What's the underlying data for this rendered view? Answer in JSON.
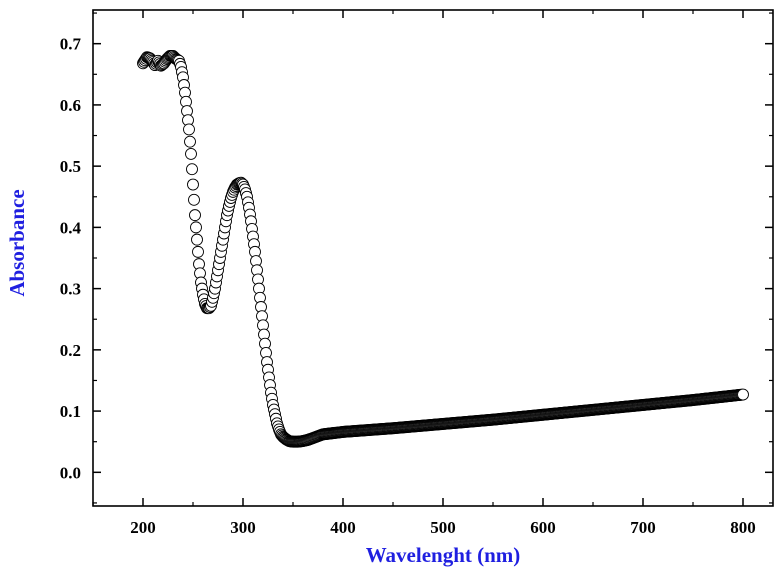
{
  "chart_data": {
    "type": "scatter",
    "xlabel": "Wavelenght (nm)",
    "ylabel": "Absorbance",
    "xlim": [
      150,
      830
    ],
    "ylim": [
      -0.055,
      0.755
    ],
    "xticks": [
      200,
      300,
      400,
      500,
      600,
      700,
      800
    ],
    "xtick_labels": [
      "200",
      "300",
      "400",
      "500",
      "600",
      "700",
      "800"
    ],
    "yticks": [
      0.0,
      0.1,
      0.2,
      0.3,
      0.4,
      0.5,
      0.6,
      0.7
    ],
    "ytick_labels": [
      "0.0",
      "0.1",
      "0.2",
      "0.3",
      "0.4",
      "0.5",
      "0.6",
      "0.7"
    ],
    "grid": false,
    "legend": "none",
    "marker": "open-circle",
    "label_color": "#1f1fe0",
    "series": [
      {
        "curve": [
          [
            200,
            0.668
          ],
          [
            204,
            0.678
          ],
          [
            207,
            0.676
          ],
          [
            210,
            0.67
          ],
          [
            212,
            0.665
          ],
          [
            215,
            0.672
          ],
          [
            218,
            0.664
          ],
          [
            221,
            0.668
          ],
          [
            224,
            0.675
          ],
          [
            227,
            0.68
          ],
          [
            230,
            0.68
          ],
          [
            233,
            0.675
          ],
          [
            236,
            0.672
          ],
          [
            238,
            0.662
          ],
          [
            240,
            0.645
          ],
          [
            242,
            0.62
          ],
          [
            244,
            0.59
          ],
          [
            246,
            0.56
          ],
          [
            248,
            0.52
          ],
          [
            250,
            0.47
          ],
          [
            252,
            0.42
          ],
          [
            254,
            0.38
          ],
          [
            256,
            0.34
          ],
          [
            258,
            0.31
          ],
          [
            260,
            0.29
          ],
          [
            262,
            0.275
          ],
          [
            264,
            0.268
          ],
          [
            266,
            0.268
          ],
          [
            268,
            0.272
          ],
          [
            270,
            0.285
          ],
          [
            272,
            0.3
          ],
          [
            274,
            0.32
          ],
          [
            276,
            0.34
          ],
          [
            278,
            0.36
          ],
          [
            280,
            0.38
          ],
          [
            282,
            0.4
          ],
          [
            284,
            0.42
          ],
          [
            286,
            0.435
          ],
          [
            288,
            0.448
          ],
          [
            290,
            0.458
          ],
          [
            292,
            0.465
          ],
          [
            294,
            0.47
          ],
          [
            296,
            0.472
          ],
          [
            298,
            0.473
          ],
          [
            300,
            0.47
          ],
          [
            302,
            0.462
          ],
          [
            304,
            0.45
          ],
          [
            306,
            0.432
          ],
          [
            308,
            0.41
          ],
          [
            310,
            0.385
          ],
          [
            312,
            0.36
          ],
          [
            314,
            0.33
          ],
          [
            316,
            0.3
          ],
          [
            318,
            0.27
          ],
          [
            320,
            0.24
          ],
          [
            322,
            0.21
          ],
          [
            324,
            0.18
          ],
          [
            326,
            0.155
          ],
          [
            328,
            0.13
          ],
          [
            330,
            0.11
          ],
          [
            332,
            0.095
          ],
          [
            334,
            0.08
          ],
          [
            336,
            0.07
          ],
          [
            338,
            0.062
          ],
          [
            340,
            0.058
          ],
          [
            343,
            0.054
          ],
          [
            346,
            0.051
          ],
          [
            350,
            0.05
          ],
          [
            355,
            0.05
          ],
          [
            360,
            0.051
          ],
          [
            365,
            0.053
          ],
          [
            370,
            0.056
          ],
          [
            375,
            0.059
          ],
          [
            380,
            0.062
          ],
          [
            390,
            0.064
          ],
          [
            400,
            0.066
          ],
          [
            450,
            0.072
          ],
          [
            500,
            0.079
          ],
          [
            550,
            0.086
          ],
          [
            600,
            0.094
          ],
          [
            650,
            0.102
          ],
          [
            700,
            0.11
          ],
          [
            750,
            0.118
          ],
          [
            800,
            0.127
          ]
        ]
      }
    ]
  }
}
